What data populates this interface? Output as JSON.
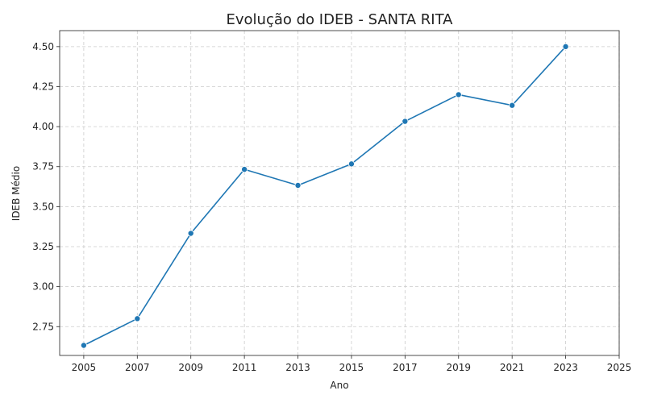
{
  "chart_data": {
    "type": "line",
    "title": "Evolução do IDEB - SANTA RITA",
    "xlabel": "Ano",
    "ylabel": "IDEB Médio",
    "xlim": [
      2004.1,
      2025
    ],
    "ylim": [
      2.57,
      4.6
    ],
    "x_ticks": [
      2005,
      2007,
      2009,
      2011,
      2013,
      2015,
      2017,
      2019,
      2021,
      2023,
      2025
    ],
    "y_ticks": [
      2.75,
      3.0,
      3.25,
      3.5,
      3.75,
      4.0,
      4.25,
      4.5
    ],
    "y_tick_labels": [
      "2.75",
      "3.00",
      "3.25",
      "3.50",
      "3.75",
      "4.00",
      "4.25",
      "4.50"
    ],
    "grid": true,
    "series": [
      {
        "x": [
          2005,
          2007,
          2009,
          2011,
          2013,
          2015,
          2017,
          2019,
          2021,
          2023
        ],
        "values": [
          2.633,
          2.8,
          3.333,
          3.733,
          3.633,
          3.767,
          4.033,
          4.2,
          4.133,
          4.5
        ],
        "color": "#1f77b4",
        "marker": "circle"
      }
    ]
  }
}
